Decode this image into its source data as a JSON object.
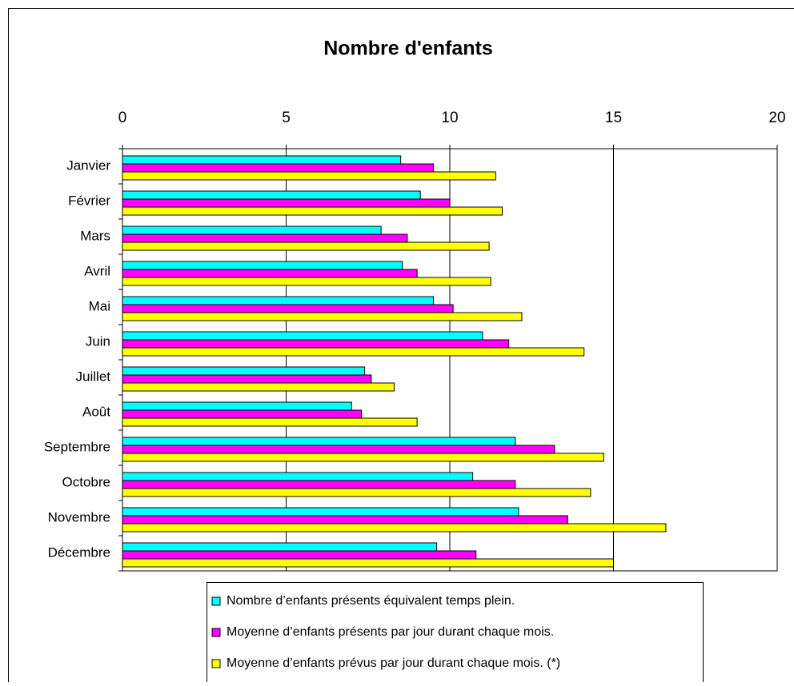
{
  "chart_data": {
    "type": "hbar",
    "title": "Nombre d'enfants",
    "categories": [
      "Janvier",
      "Février",
      "Mars",
      "Avril",
      "Mai",
      "Juin",
      "Juillet",
      "Août",
      "Septembre",
      "Octobre",
      "Novembre",
      "Décembre"
    ],
    "series": [
      {
        "name": "Nombre d’enfants présents équivalent temps plein.",
        "color": "#00ffff",
        "values": [
          8.5,
          9.1,
          7.9,
          8.55,
          9.5,
          11.0,
          7.4,
          7.0,
          12.0,
          10.7,
          12.1,
          9.6
        ]
      },
      {
        "name": "Moyenne d’enfants présents par jour durant chaque mois.",
        "color": "#ff00ff",
        "values": [
          9.5,
          10.0,
          8.7,
          9.0,
          10.1,
          11.8,
          7.6,
          7.3,
          13.2,
          12.0,
          13.6,
          10.8
        ]
      },
      {
        "name": "Moyenne d’enfants prévus par jour durant chaque mois. (*)",
        "color": "#ffff00",
        "values": [
          11.4,
          11.6,
          11.2,
          11.25,
          12.2,
          14.1,
          8.3,
          9.0,
          14.7,
          14.3,
          16.6,
          15.0
        ]
      }
    ],
    "xlim": [
      0,
      20
    ],
    "xticks": [
      0,
      5,
      10,
      15,
      20
    ],
    "grid": true,
    "legend": "bottom"
  }
}
